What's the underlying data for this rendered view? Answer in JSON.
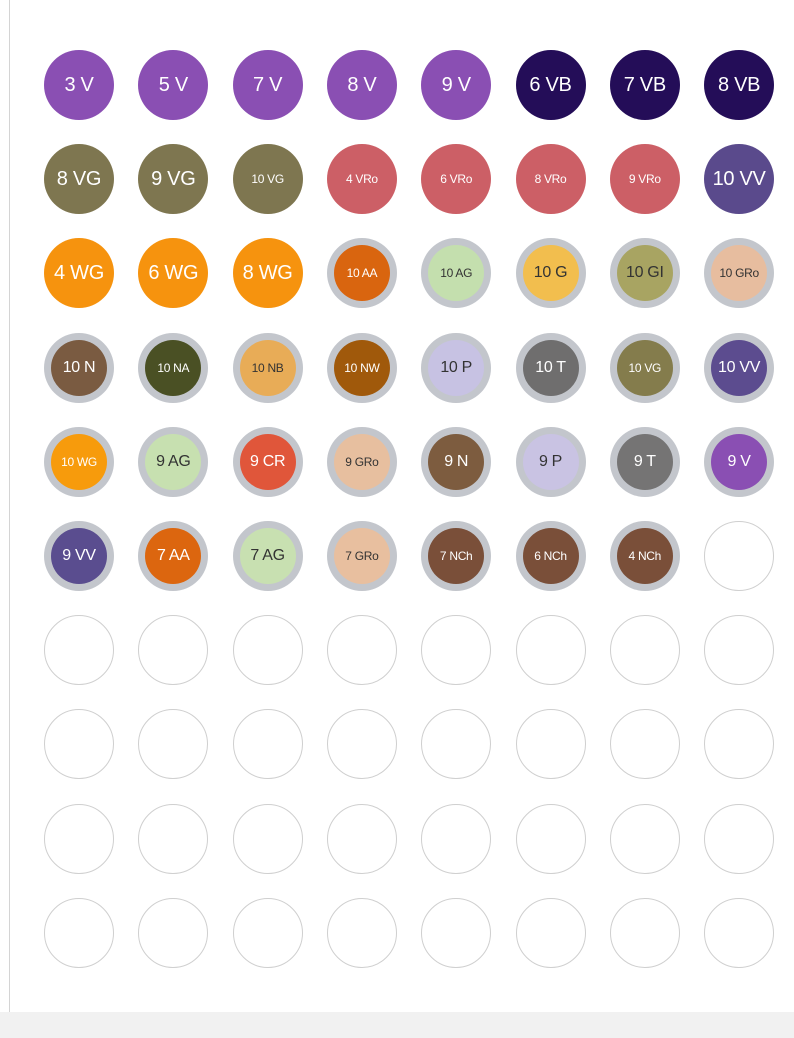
{
  "swatches": [
    {
      "label": "3 V",
      "color": "#8a4fb3",
      "style": "plain",
      "text": "#ffffff"
    },
    {
      "label": "5 V",
      "color": "#8a4fb3",
      "style": "plain",
      "text": "#ffffff"
    },
    {
      "label": "7 V",
      "color": "#8a4fb3",
      "style": "plain",
      "text": "#ffffff"
    },
    {
      "label": "8 V",
      "color": "#8a4fb3",
      "style": "plain",
      "text": "#ffffff"
    },
    {
      "label": "9 V",
      "color": "#8a4fb3",
      "style": "plain",
      "text": "#ffffff"
    },
    {
      "label": "6 VB",
      "color": "#240d58",
      "style": "plain",
      "text": "#ffffff"
    },
    {
      "label": "7 VB",
      "color": "#240d58",
      "style": "plain",
      "text": "#ffffff"
    },
    {
      "label": "8 VB",
      "color": "#240d58",
      "style": "plain",
      "text": "#ffffff"
    },
    {
      "label": "8 VG",
      "color": "#7e7650",
      "style": "plain",
      "text": "#ffffff"
    },
    {
      "label": "9 VG",
      "color": "#7e7650",
      "style": "plain",
      "text": "#ffffff"
    },
    {
      "label": "10 VG",
      "color": "#7e7650",
      "style": "plain",
      "text": "#ffffff",
      "small": true
    },
    {
      "label": "4 VRo",
      "color": "#cc5f66",
      "style": "plain",
      "text": "#ffffff",
      "small": true
    },
    {
      "label": "6 VRo",
      "color": "#cc5f66",
      "style": "plain",
      "text": "#ffffff",
      "small": true
    },
    {
      "label": "8 VRo",
      "color": "#cc5f66",
      "style": "plain",
      "text": "#ffffff",
      "small": true
    },
    {
      "label": "9 VRo",
      "color": "#cc5f66",
      "style": "plain",
      "text": "#ffffff",
      "small": true
    },
    {
      "label": "10 VV",
      "color": "#5a4a8c",
      "style": "plain",
      "text": "#ffffff"
    },
    {
      "label": "4 WG",
      "color": "#f6930e",
      "style": "plain",
      "text": "#ffffff"
    },
    {
      "label": "6 WG",
      "color": "#f6930e",
      "style": "plain",
      "text": "#ffffff"
    },
    {
      "label": "8 WG",
      "color": "#f6930e",
      "style": "plain",
      "text": "#ffffff"
    },
    {
      "label": "10 AA",
      "color": "#d9650f",
      "style": "ringed",
      "text": "#ffffff",
      "small": true
    },
    {
      "label": "10 AG",
      "color": "#c4dfae",
      "style": "ringed",
      "text": "#333333",
      "small": true
    },
    {
      "label": "10 G",
      "color": "#f2be4e",
      "style": "ringed",
      "text": "#333333"
    },
    {
      "label": "10 GI",
      "color": "#a8a462",
      "style": "ringed",
      "text": "#333333"
    },
    {
      "label": "10 GRo",
      "color": "#e7bd9f",
      "style": "ringed",
      "text": "#333333",
      "small": true
    },
    {
      "label": "10 N",
      "color": "#7a5b41",
      "style": "ringed",
      "text": "#ffffff"
    },
    {
      "label": "10 NA",
      "color": "#4a5024",
      "style": "ringed",
      "text": "#ffffff",
      "small": true
    },
    {
      "label": "10 NB",
      "color": "#e8ac57",
      "style": "ringed",
      "text": "#333333",
      "small": true
    },
    {
      "label": "10 NW",
      "color": "#a0590b",
      "style": "ringed",
      "text": "#ffffff",
      "small": true
    },
    {
      "label": "10 P",
      "color": "#c7c2e3",
      "style": "ringed",
      "text": "#333333"
    },
    {
      "label": "10 T",
      "color": "#6f6e6e",
      "style": "ringed",
      "text": "#ffffff"
    },
    {
      "label": "10 VG",
      "color": "#847c4c",
      "style": "ringed",
      "text": "#ffffff",
      "small": true
    },
    {
      "label": "10 VV",
      "color": "#5c4c8f",
      "style": "ringed",
      "text": "#ffffff"
    },
    {
      "label": "10 WG",
      "color": "#f79b0c",
      "style": "ringed",
      "text": "#ffffff",
      "small": true
    },
    {
      "label": "9 AG",
      "color": "#c7e0b0",
      "style": "ringed",
      "text": "#333333"
    },
    {
      "label": "9 CR",
      "color": "#e0563a",
      "style": "ringed",
      "text": "#ffffff"
    },
    {
      "label": "9 GRo",
      "color": "#e7bf9f",
      "style": "ringed",
      "text": "#333333",
      "small": true
    },
    {
      "label": "9 N",
      "color": "#7d5c3f",
      "style": "ringed",
      "text": "#ffffff"
    },
    {
      "label": "9 P",
      "color": "#c9c3e3",
      "style": "ringed",
      "text": "#333333"
    },
    {
      "label": "9 T",
      "color": "#757474",
      "style": "ringed",
      "text": "#ffffff"
    },
    {
      "label": "9 V",
      "color": "#8a4fb3",
      "style": "ringed",
      "text": "#ffffff"
    },
    {
      "label": "9 VV",
      "color": "#5a4d8f",
      "style": "ringed",
      "text": "#ffffff"
    },
    {
      "label": "7 AA",
      "color": "#dc660f",
      "style": "ringed",
      "text": "#ffffff"
    },
    {
      "label": "7 AG",
      "color": "#c8e0b1",
      "style": "ringed",
      "text": "#333333"
    },
    {
      "label": "7 GRo",
      "color": "#e8bf9f",
      "style": "ringed",
      "text": "#333333",
      "small": true
    },
    {
      "label": "7 NCh",
      "color": "#7a4f39",
      "style": "ringed",
      "text": "#ffffff",
      "small": true
    },
    {
      "label": "6 NCh",
      "color": "#7a4f39",
      "style": "ringed",
      "text": "#ffffff",
      "small": true
    },
    {
      "label": "4 NCh",
      "color": "#7a4f39",
      "style": "ringed",
      "text": "#ffffff",
      "small": true
    }
  ],
  "empty_slots": 33,
  "columns": 8
}
